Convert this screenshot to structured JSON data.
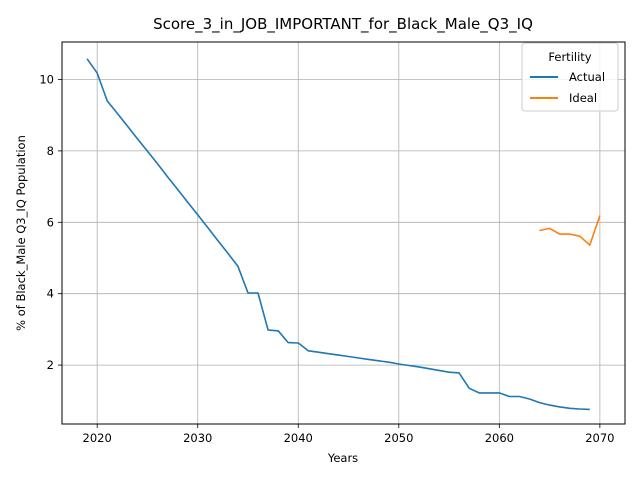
{
  "chart_data": {
    "type": "line",
    "title": "Score_3_in_JOB_IMPORTANT_for_Black_Male_Q3_IQ",
    "xlabel": "Years",
    "ylabel": "% of Black_Male Q3_IQ Population",
    "xlim": [
      2016.5,
      2072.5
    ],
    "ylim": [
      0.35,
      11.05
    ],
    "xticks": [
      2020,
      2030,
      2040,
      2050,
      2060,
      2070
    ],
    "yticks": [
      2,
      4,
      6,
      8,
      10
    ],
    "grid": true,
    "legend": {
      "title": "Fertility",
      "position": "top-right"
    },
    "series": [
      {
        "name": "Actual",
        "color": "#1f77b4",
        "x": [
          2019,
          2020,
          2021,
          2022,
          2023,
          2024,
          2025,
          2026,
          2027,
          2028,
          2029,
          2030,
          2031,
          2032,
          2033,
          2034,
          2035,
          2036,
          2037,
          2038,
          2039,
          2040,
          2041,
          2042,
          2043,
          2044,
          2045,
          2046,
          2047,
          2048,
          2049,
          2050,
          2051,
          2052,
          2053,
          2054,
          2055,
          2056,
          2057,
          2058,
          2059,
          2060,
          2061,
          2062,
          2063,
          2064,
          2065,
          2066,
          2067,
          2068,
          2069
        ],
        "y": [
          10.58,
          10.18,
          9.4,
          9.05,
          8.7,
          8.34,
          7.99,
          7.64,
          7.27,
          6.92,
          6.56,
          6.21,
          5.85,
          5.49,
          5.13,
          4.77,
          4.02,
          4.02,
          2.98,
          2.96,
          2.63,
          2.62,
          2.4,
          2.36,
          2.32,
          2.28,
          2.24,
          2.2,
          2.16,
          2.12,
          2.08,
          2.03,
          1.99,
          1.95,
          1.9,
          1.85,
          1.8,
          1.78,
          1.35,
          1.22,
          1.22,
          1.22,
          1.12,
          1.12,
          1.05,
          0.95,
          0.88,
          0.83,
          0.79,
          0.77,
          0.76
        ]
      },
      {
        "name": "Ideal",
        "color": "#ff7f0e",
        "x": [
          2064,
          2065,
          2066,
          2067,
          2068,
          2069,
          2070
        ],
        "y": [
          5.77,
          5.83,
          5.67,
          5.67,
          5.61,
          5.36,
          6.19
        ]
      }
    ]
  }
}
